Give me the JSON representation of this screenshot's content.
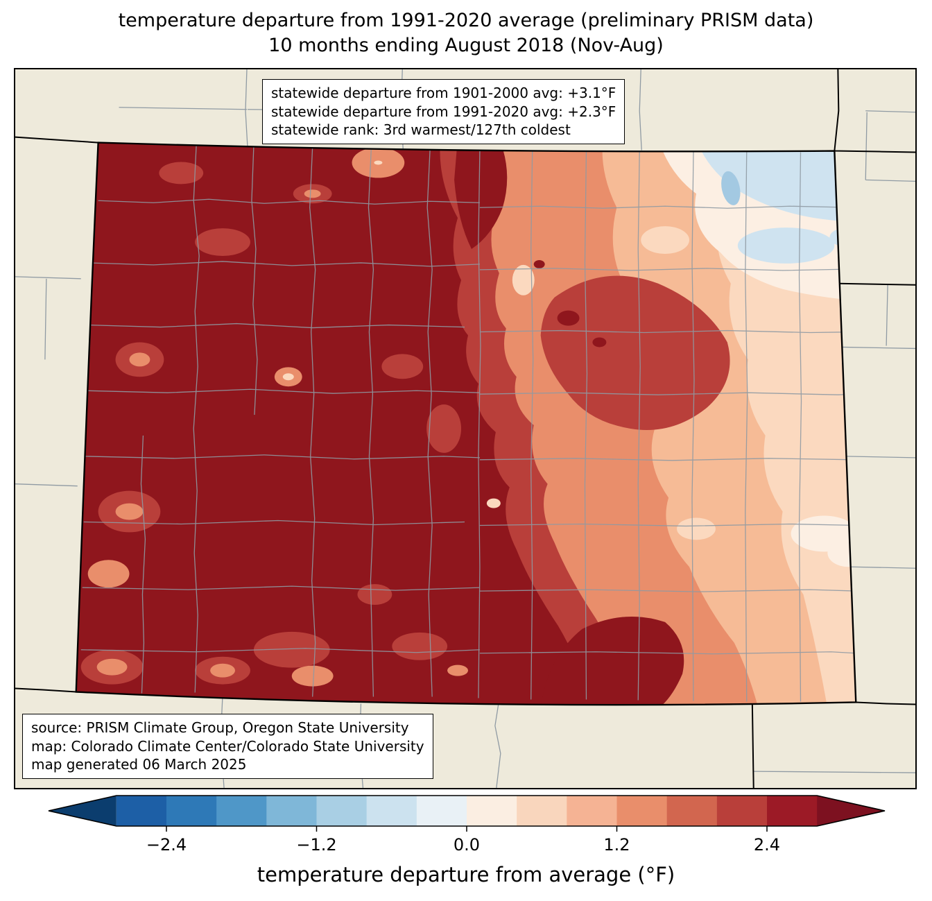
{
  "title": {
    "line1": "temperature departure from 1991-2020 average (preliminary PRISM data)",
    "line2": "10 months ending August 2018 (Nov-Aug)"
  },
  "stats_box": {
    "lines": [
      "statewide departure from 1901-2000 avg: +3.1°F",
      "statewide departure from 1991-2020 avg: +2.3°F",
      "statewide rank: 3rd warmest/127th coldest"
    ]
  },
  "source_box": {
    "lines": [
      "source: PRISM Climate Group, Oregon State University",
      "map: Colorado Climate Center/Colorado State University",
      "map generated 06 March 2025"
    ]
  },
  "colorbar": {
    "label": "temperature departure from average (°F)",
    "ticks": [
      "−2.4",
      "−1.2",
      "0.0",
      "1.2",
      "2.4"
    ],
    "tick_values": [
      -2.4,
      -1.2,
      0.0,
      1.2,
      2.4
    ],
    "range": [
      -2.8,
      2.8
    ],
    "segment_colors": [
      "#1d5fa6",
      "#2e79b7",
      "#4f97c8",
      "#7fb7d8",
      "#a9cfe4",
      "#cce2ef",
      "#e9f1f6",
      "#fbeee2",
      "#f9d6bd",
      "#f5b394",
      "#e98e6b",
      "#d2664f",
      "#b93f3a",
      "#9c1a26"
    ],
    "extend_low_color": "#0b3d6e",
    "extend_high_color": "#7d1120"
  },
  "palette": {
    "base_dark_red": "#8f161d",
    "red": "#b93f3a",
    "salmon": "#e98e6b",
    "light_salmon": "#f6bb96",
    "pale_peach": "#fbd9bf",
    "near_white_warm": "#fcefe3",
    "pale_blue": "#cfe3f0",
    "light_blue": "#a3c9e2",
    "background": "#eeeadb",
    "county_line": "#8f9aa3",
    "state_line": "#000000"
  },
  "map": {
    "region": "Colorado"
  },
  "chart_data": {
    "type": "heatmap",
    "title": "temperature departure from 1991-2020 average (preliminary PRISM data) — 10 months ending August 2018 (Nov-Aug)",
    "colorbar_label": "temperature departure from average (°F)",
    "colorbar_ticks": [
      -2.4,
      -1.2,
      0.0,
      1.2,
      2.4
    ],
    "colorbar_range": [
      -2.8,
      2.8
    ],
    "statewide_departure_from_1901_2000_avg_F": 3.1,
    "statewide_departure_from_1991_2020_avg_F": 2.3,
    "statewide_rank": "3rd warmest/127th coldest"
  }
}
